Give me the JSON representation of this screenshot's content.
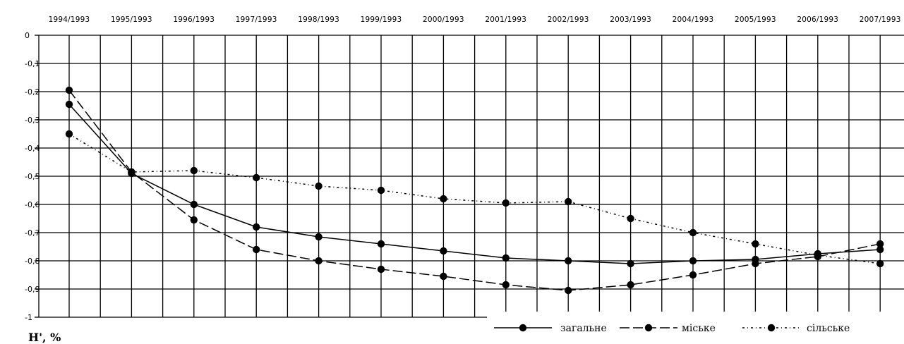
{
  "chart_data": {
    "type": "line",
    "categories": [
      "1994/1993",
      "1995/1993",
      "1996/1993",
      "1997/1993",
      "1998/1993",
      "1999/1993",
      "2000/1993",
      "2001/1993",
      "2002/1993",
      "2003/1993",
      "2004/1993",
      "2005/1993",
      "2006/1993",
      "2007/1993"
    ],
    "ylim": [
      -1,
      0
    ],
    "yticks": [
      "0",
      "-0,1",
      "-0,2",
      "-0,3",
      "-0,4",
      "-0,5",
      "-0,6",
      "-0,7",
      "-0,8",
      "-0,9",
      "-1"
    ],
    "ylabel": "H', %",
    "grid": true,
    "legend_position": "bottom-right",
    "series": [
      {
        "name": "загальне",
        "dash": "solid",
        "values": [
          -0.245,
          -0.49,
          -0.6,
          -0.68,
          -0.715,
          -0.74,
          -0.765,
          -0.79,
          -0.8,
          -0.81,
          -0.8,
          -0.795,
          -0.775,
          -0.76
        ]
      },
      {
        "name": "міське",
        "dash": "dashed",
        "values": [
          -0.195,
          -0.485,
          -0.655,
          -0.76,
          -0.8,
          -0.83,
          -0.855,
          -0.885,
          -0.905,
          -0.885,
          -0.85,
          -0.81,
          -0.785,
          -0.74
        ]
      },
      {
        "name": "сільське",
        "dash": "dashdot",
        "values": [
          -0.35,
          -0.485,
          -0.48,
          -0.505,
          -0.535,
          -0.55,
          -0.58,
          -0.595,
          -0.59,
          -0.65,
          -0.7,
          -0.74,
          -0.78,
          -0.81
        ]
      }
    ]
  }
}
